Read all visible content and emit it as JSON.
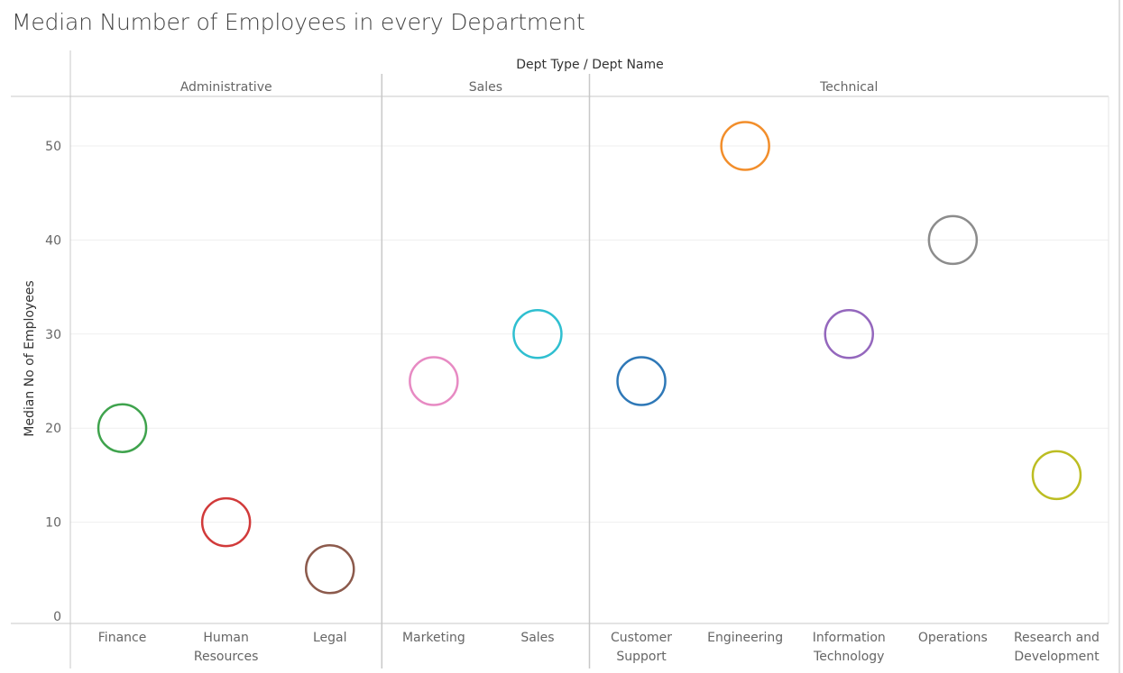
{
  "title": "Median Number of Employees in every Department",
  "chart_data": {
    "type": "scatter",
    "title": "Median Number of Employees in every Department",
    "xlabel": "Dept Type  /  Dept Name",
    "ylabel": "Median No of Employees",
    "ylim": [
      0,
      55
    ],
    "yticks": [
      0,
      10,
      20,
      30,
      40,
      50
    ],
    "marker": "open-circle",
    "grid": true,
    "groups": [
      {
        "name": "Administrative",
        "departments": [
          {
            "lines": [
              "Finance"
            ],
            "value": 20,
            "color": "#3fa34d"
          },
          {
            "lines": [
              "Human",
              "Resources"
            ],
            "value": 10,
            "color": "#d13a3a"
          },
          {
            "lines": [
              "Legal"
            ],
            "value": 5,
            "color": "#8c5a4c"
          }
        ]
      },
      {
        "name": "Sales",
        "departments": [
          {
            "lines": [
              "Marketing"
            ],
            "value": 25,
            "color": "#e78ac3"
          },
          {
            "lines": [
              "Sales"
            ],
            "value": 30,
            "color": "#2fbfd0"
          }
        ]
      },
      {
        "name": "Technical",
        "departments": [
          {
            "lines": [
              "Customer",
              "Support"
            ],
            "value": 25,
            "color": "#2e78b7"
          },
          {
            "lines": [
              "Engineering"
            ],
            "value": 50,
            "color": "#f28e2b"
          },
          {
            "lines": [
              "Information",
              "Technology"
            ],
            "value": 30,
            "color": "#9467bd"
          },
          {
            "lines": [
              "Operations"
            ],
            "value": 40,
            "color": "#8c8c8c"
          },
          {
            "lines": [
              "Research and",
              "Development"
            ],
            "value": 15,
            "color": "#bcbd22"
          }
        ]
      }
    ]
  }
}
